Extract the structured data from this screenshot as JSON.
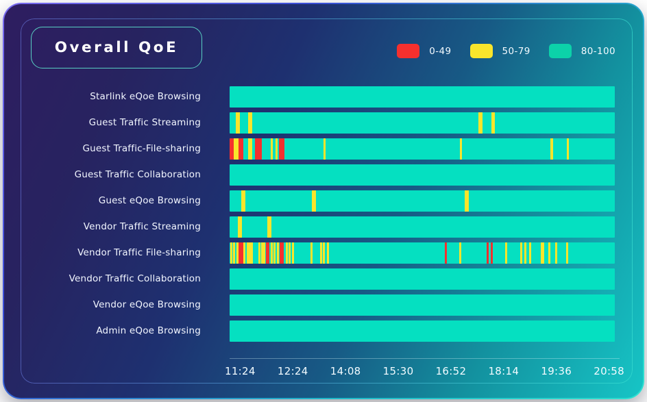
{
  "title": "Overall QoE",
  "legend": [
    {
      "label": "0-49",
      "color": "#f5302e"
    },
    {
      "label": "50-79",
      "color": "#f9e52b"
    },
    {
      "label": "80-100",
      "color": "#0cd2a9"
    }
  ],
  "colors": {
    "red": "#f5302e",
    "yellow": "#f9e52b",
    "teal": "#05e0c1",
    "card_dark": "#2e1d60",
    "card_teal": "#16c5c6"
  },
  "chart_data": {
    "type": "heatmap",
    "title": "Overall QoE",
    "xlabel": "",
    "ylabel": "",
    "legend_position": "top-right",
    "legend_entries": [
      "0-49",
      "50-79",
      "80-100"
    ],
    "x_ticks": [
      "11:24",
      "12:24",
      "14:08",
      "15:30",
      "16:52",
      "18:14",
      "19:36",
      "20:58"
    ],
    "tick_start_pct": 2.7,
    "tick_step_pct": 13.514,
    "baseline_level": "80-100",
    "rows": [
      {
        "label": "Starlink eQoe Browsing",
        "segments": []
      },
      {
        "label": "Guest Traffic Streaming",
        "segments": [
          {
            "start_pct": 1.6,
            "width_pct": 1.1,
            "level": "50-79"
          },
          {
            "start_pct": 4.8,
            "width_pct": 1.1,
            "level": "50-79"
          },
          {
            "start_pct": 64.6,
            "width_pct": 1.0,
            "level": "50-79"
          },
          {
            "start_pct": 67.9,
            "width_pct": 1.0,
            "level": "50-79"
          }
        ]
      },
      {
        "label": "Guest Traffic-File-sharing",
        "segments": [
          {
            "start_pct": 0.0,
            "width_pct": 1.1,
            "level": "0-49"
          },
          {
            "start_pct": 1.1,
            "width_pct": 1.2,
            "level": "50-79"
          },
          {
            "start_pct": 2.3,
            "width_pct": 1.2,
            "level": "0-49"
          },
          {
            "start_pct": 4.8,
            "width_pct": 1.1,
            "level": "50-79"
          },
          {
            "start_pct": 6.6,
            "width_pct": 1.8,
            "level": "0-49"
          },
          {
            "start_pct": 10.7,
            "width_pct": 0.6,
            "level": "50-79"
          },
          {
            "start_pct": 11.9,
            "width_pct": 0.6,
            "level": "50-79"
          },
          {
            "start_pct": 12.8,
            "width_pct": 1.4,
            "level": "0-49"
          },
          {
            "start_pct": 24.4,
            "width_pct": 0.6,
            "level": "50-79"
          },
          {
            "start_pct": 59.8,
            "width_pct": 0.6,
            "level": "50-79"
          },
          {
            "start_pct": 83.3,
            "width_pct": 0.6,
            "level": "50-79"
          },
          {
            "start_pct": 87.5,
            "width_pct": 0.6,
            "level": "50-79"
          }
        ]
      },
      {
        "label": "Guest Traffic Collaboration",
        "segments": []
      },
      {
        "label": "Guest eQoe Browsing",
        "segments": [
          {
            "start_pct": 3.0,
            "width_pct": 1.1,
            "level": "50-79"
          },
          {
            "start_pct": 21.4,
            "width_pct": 1.1,
            "level": "50-79"
          },
          {
            "start_pct": 61.0,
            "width_pct": 1.1,
            "level": "50-79"
          }
        ]
      },
      {
        "label": "Vendor Traffic Streaming",
        "segments": [
          {
            "start_pct": 2.1,
            "width_pct": 1.1,
            "level": "50-79"
          },
          {
            "start_pct": 9.8,
            "width_pct": 1.1,
            "level": "50-79"
          }
        ]
      },
      {
        "label": "Vendor Traffic File-sharing",
        "segments": [
          {
            "start_pct": 0.2,
            "width_pct": 0.5,
            "level": "50-79"
          },
          {
            "start_pct": 0.9,
            "width_pct": 0.5,
            "level": "50-79"
          },
          {
            "start_pct": 1.8,
            "width_pct": 0.45,
            "level": "50-79"
          },
          {
            "start_pct": 2.3,
            "width_pct": 1.25,
            "level": "0-49"
          },
          {
            "start_pct": 3.6,
            "width_pct": 0.5,
            "level": "50-79"
          },
          {
            "start_pct": 4.4,
            "width_pct": 0.4,
            "level": "50-79"
          },
          {
            "start_pct": 5.0,
            "width_pct": 1.1,
            "level": "50-79"
          },
          {
            "start_pct": 7.5,
            "width_pct": 0.45,
            "level": "50-79"
          },
          {
            "start_pct": 8.2,
            "width_pct": 0.4,
            "level": "50-79"
          },
          {
            "start_pct": 8.8,
            "width_pct": 0.45,
            "level": "50-79"
          },
          {
            "start_pct": 9.4,
            "width_pct": 0.9,
            "level": "0-49"
          },
          {
            "start_pct": 10.7,
            "width_pct": 0.4,
            "level": "50-79"
          },
          {
            "start_pct": 11.4,
            "width_pct": 0.4,
            "level": "50-79"
          },
          {
            "start_pct": 12.3,
            "width_pct": 0.4,
            "level": "50-79"
          },
          {
            "start_pct": 13.0,
            "width_pct": 1.1,
            "level": "0-49"
          },
          {
            "start_pct": 14.6,
            "width_pct": 0.4,
            "level": "50-79"
          },
          {
            "start_pct": 15.3,
            "width_pct": 0.4,
            "level": "50-79"
          },
          {
            "start_pct": 16.2,
            "width_pct": 0.4,
            "level": "50-79"
          },
          {
            "start_pct": 21.0,
            "width_pct": 0.4,
            "level": "50-79"
          },
          {
            "start_pct": 23.5,
            "width_pct": 0.4,
            "level": "50-79"
          },
          {
            "start_pct": 24.2,
            "width_pct": 0.4,
            "level": "50-79"
          },
          {
            "start_pct": 25.3,
            "width_pct": 0.4,
            "level": "50-79"
          },
          {
            "start_pct": 55.9,
            "width_pct": 0.55,
            "level": "0-49"
          },
          {
            "start_pct": 59.6,
            "width_pct": 0.55,
            "level": "50-79"
          },
          {
            "start_pct": 66.7,
            "width_pct": 0.55,
            "level": "0-49"
          },
          {
            "start_pct": 67.8,
            "width_pct": 0.55,
            "level": "0-49"
          },
          {
            "start_pct": 71.5,
            "width_pct": 0.45,
            "level": "50-79"
          },
          {
            "start_pct": 75.4,
            "width_pct": 0.5,
            "level": "50-79"
          },
          {
            "start_pct": 76.6,
            "width_pct": 0.5,
            "level": "50-79"
          },
          {
            "start_pct": 77.8,
            "width_pct": 0.45,
            "level": "50-79"
          },
          {
            "start_pct": 80.7,
            "width_pct": 0.9,
            "level": "50-79"
          },
          {
            "start_pct": 82.8,
            "width_pct": 0.5,
            "level": "50-79"
          },
          {
            "start_pct": 84.6,
            "width_pct": 0.5,
            "level": "50-79"
          },
          {
            "start_pct": 87.3,
            "width_pct": 0.5,
            "level": "50-79"
          }
        ]
      },
      {
        "label": "Vendor Traffic Collaboration",
        "segments": []
      },
      {
        "label": "Vendor eQoe Browsing",
        "segments": []
      },
      {
        "label": "Admin eQoe Browsing",
        "segments": []
      }
    ]
  }
}
